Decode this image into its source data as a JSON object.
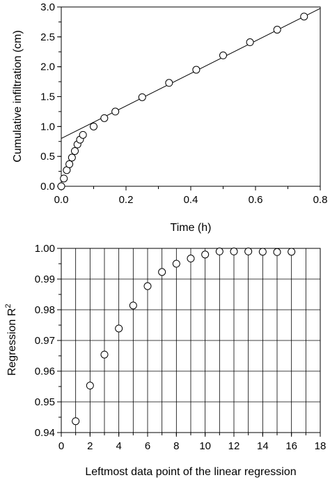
{
  "chart_data": [
    {
      "type": "scatter",
      "xlabel": "Time (h)",
      "ylabel": "Cumulative infiltration (cm)",
      "xlim": [
        0,
        0.8
      ],
      "ylim": [
        0,
        3.0
      ],
      "grid": false,
      "x_ticks": [
        "0.0",
        "0.2",
        "0.4",
        "0.6",
        "0.8"
      ],
      "y_ticks": [
        "0.0",
        "0.5",
        "1.0",
        "1.5",
        "2.0",
        "2.5",
        "3.0"
      ],
      "series": [
        {
          "x": [
            0.0,
            0.008,
            0.017,
            0.025,
            0.033,
            0.042,
            0.05,
            0.058,
            0.067,
            0.1,
            0.133,
            0.167,
            0.25,
            0.333,
            0.417,
            0.5,
            0.583,
            0.667,
            0.75
          ],
          "y": [
            0.0,
            0.13,
            0.27,
            0.37,
            0.48,
            0.59,
            0.7,
            0.78,
            0.86,
            1.0,
            1.14,
            1.25,
            1.49,
            1.73,
            1.95,
            2.19,
            2.41,
            2.62,
            2.84
          ]
        }
      ],
      "regression_line": {
        "intercept": 0.8,
        "slope": 2.72
      }
    },
    {
      "type": "scatter",
      "xlabel": "Leftmost data point of the linear regression",
      "ylabel": "Regression R",
      "ylabel_superscript": "2",
      "xlim": [
        0,
        18
      ],
      "ylim": [
        0.94,
        1.0
      ],
      "grid": true,
      "x_ticks": [
        "0",
        "2",
        "4",
        "6",
        "8",
        "10",
        "12",
        "14",
        "16",
        "18"
      ],
      "y_ticks": [
        "0.94",
        "0.95",
        "0.96",
        "0.97",
        "0.98",
        "0.99",
        "1.00"
      ],
      "series": [
        {
          "x": [
            1,
            2,
            3,
            4,
            5,
            6,
            7,
            8,
            9,
            10,
            11,
            12,
            13,
            14,
            15,
            16
          ],
          "y": [
            0.9437,
            0.9553,
            0.9654,
            0.9739,
            0.9814,
            0.9877,
            0.9923,
            0.995,
            0.9967,
            0.998,
            0.999,
            0.999,
            0.999,
            0.9989,
            0.9988,
            0.9989
          ]
        }
      ]
    }
  ]
}
